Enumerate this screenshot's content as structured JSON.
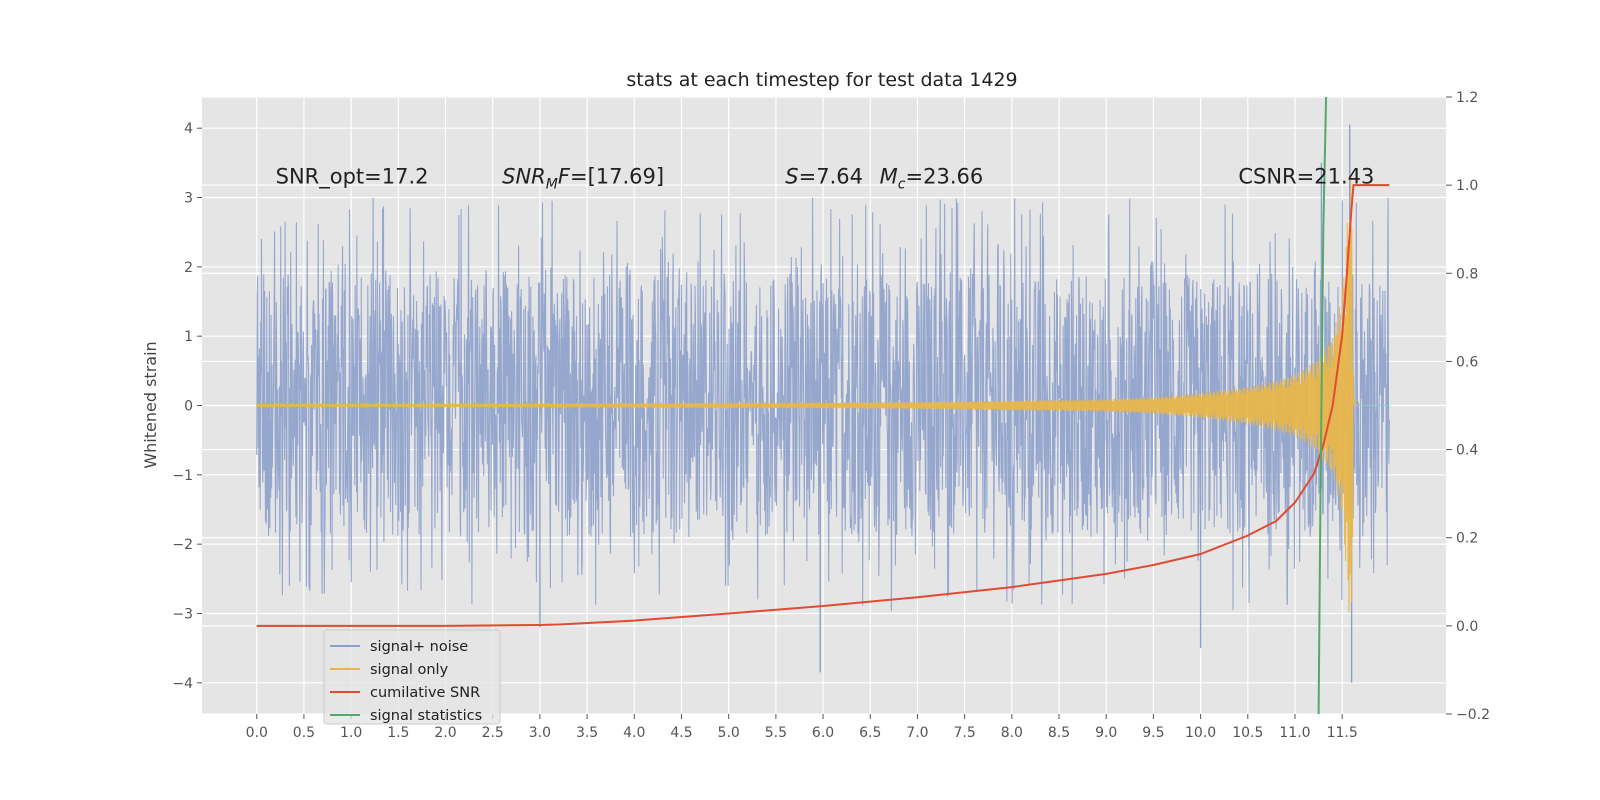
{
  "chart_data": {
    "type": "line",
    "title": "stats at each timestep for test data 1429",
    "ylabel": "Whitened strain",
    "xlabel": "",
    "xlim": [
      -0.58,
      12.6
    ],
    "ylim": [
      -4.45,
      4.45
    ],
    "y2lim": [
      -0.2,
      1.2
    ],
    "x_ticks": [
      0.0,
      0.5,
      1.0,
      1.5,
      2.0,
      2.5,
      3.0,
      3.5,
      4.0,
      4.5,
      5.0,
      5.5,
      6.0,
      6.5,
      7.0,
      7.5,
      8.0,
      8.5,
      9.0,
      9.5,
      10.0,
      10.5,
      11.0,
      11.5
    ],
    "x_tick_labels": [
      "0.0",
      "0.5",
      "1.0",
      "1.5",
      "2.0",
      "2.5",
      "3.0",
      "3.5",
      "4.0",
      "4.5",
      "5.0",
      "5.5",
      "6.0",
      "6.5",
      "7.0",
      "7.5",
      "8.0",
      "8.5",
      "9.0",
      "9.5",
      "10.0",
      "10.5",
      "11.0",
      "11.5"
    ],
    "y_ticks": [
      -4,
      -3,
      -2,
      -1,
      0,
      1,
      2,
      3,
      4
    ],
    "y_tick_labels": [
      "−4",
      "−3",
      "−2",
      "−1",
      "0",
      "1",
      "2",
      "3",
      "4"
    ],
    "y2_ticks": [
      -0.2,
      0.0,
      0.2,
      0.4,
      0.6,
      0.8,
      1.0,
      1.2
    ],
    "y2_tick_labels": [
      "−0.2",
      "0.0",
      "0.2",
      "0.4",
      "0.6",
      "0.8",
      "1.0",
      "1.2"
    ],
    "grid": true,
    "legend_position": "lower-left",
    "annotations": [
      {
        "text": "SNR_opt=17.2",
        "x": 0.2,
        "y": 3.2
      },
      {
        "text": "SNR_MF=[17.69]",
        "x": 2.6,
        "y": 3.2
      },
      {
        "text": "S=7.64",
        "x": 5.6,
        "y": 3.2
      },
      {
        "text": "M_c=23.66",
        "x": 6.6,
        "y": 3.2
      },
      {
        "text": "CSNR=21.43",
        "x": 10.4,
        "y": 3.2
      }
    ],
    "series": [
      {
        "name": "signal+ noise",
        "color": "#8da0cb",
        "axis": "left",
        "x_range": [
          0.0,
          12.0
        ],
        "typical_range": [
          -1.9,
          1.9
        ],
        "extremes": [
          {
            "x": 5.97,
            "y": -3.85
          },
          {
            "x": 11.58,
            "y": 4.05
          },
          {
            "x": 11.6,
            "y": -4.0
          },
          {
            "x": 3.0,
            "y": -3.2
          },
          {
            "x": 10.0,
            "y": -3.5
          },
          {
            "x": 11.28,
            "y": 3.5
          }
        ]
      },
      {
        "name": "signal only",
        "color": "#e8b64a",
        "axis": "left",
        "x": [
          0.0,
          2.0,
          4.0,
          6.0,
          7.0,
          8.0,
          9.0,
          9.5,
          10.0,
          10.5,
          10.8,
          11.0,
          11.2,
          11.3,
          11.4,
          11.5,
          11.55,
          11.6,
          11.62,
          12.0
        ],
        "amplitude": [
          0.02,
          0.02,
          0.03,
          0.04,
          0.05,
          0.07,
          0.09,
          0.12,
          0.18,
          0.27,
          0.36,
          0.45,
          0.62,
          0.78,
          1.0,
          1.6,
          2.6,
          3.5,
          0.0,
          0.0
        ]
      },
      {
        "name": "cumilative SNR",
        "color": "#e24a33",
        "axis": "right",
        "x": [
          0.0,
          1.0,
          2.0,
          3.0,
          3.2,
          4.0,
          5.0,
          6.0,
          7.0,
          8.0,
          9.0,
          9.5,
          10.0,
          10.5,
          10.8,
          11.0,
          11.2,
          11.3,
          11.4,
          11.5,
          11.55,
          11.6,
          11.62,
          12.0
        ],
        "y": [
          0.0,
          0.0,
          0.0,
          0.002,
          0.003,
          0.012,
          0.028,
          0.045,
          0.065,
          0.088,
          0.118,
          0.138,
          0.163,
          0.205,
          0.238,
          0.28,
          0.345,
          0.41,
          0.5,
          0.66,
          0.8,
          0.95,
          1.0,
          1.0
        ]
      },
      {
        "name": "signal statistics",
        "color": "#55a868",
        "axis": "right",
        "x": [
          11.25,
          11.27,
          11.3,
          11.33
        ],
        "y": [
          -0.2,
          0.3,
          0.9,
          1.2
        ]
      }
    ]
  }
}
